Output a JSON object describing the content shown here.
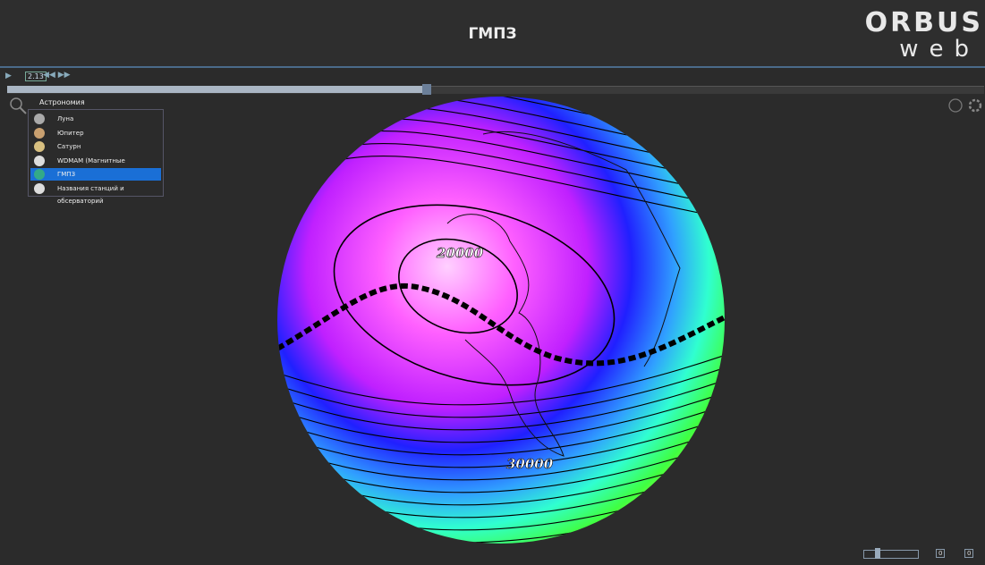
{
  "header": {
    "title": "ГМПЗ",
    "logo_top": "ORBUS",
    "logo_bottom": "web"
  },
  "controls": {
    "speed": "2.13"
  },
  "menu": {
    "root": "Астрономия",
    "items": [
      "Луна",
      "Юпитер",
      "Сатурн",
      "WDMAM (Магнитные аномалии)",
      "ГМПЗ",
      "Названия станций и обсерваторий"
    ],
    "selected": "ГМПЗ"
  },
  "globe": {
    "labels": [
      "20000",
      "30000"
    ]
  },
  "bottom_controls": {
    "fields": [
      "0",
      "0"
    ]
  }
}
